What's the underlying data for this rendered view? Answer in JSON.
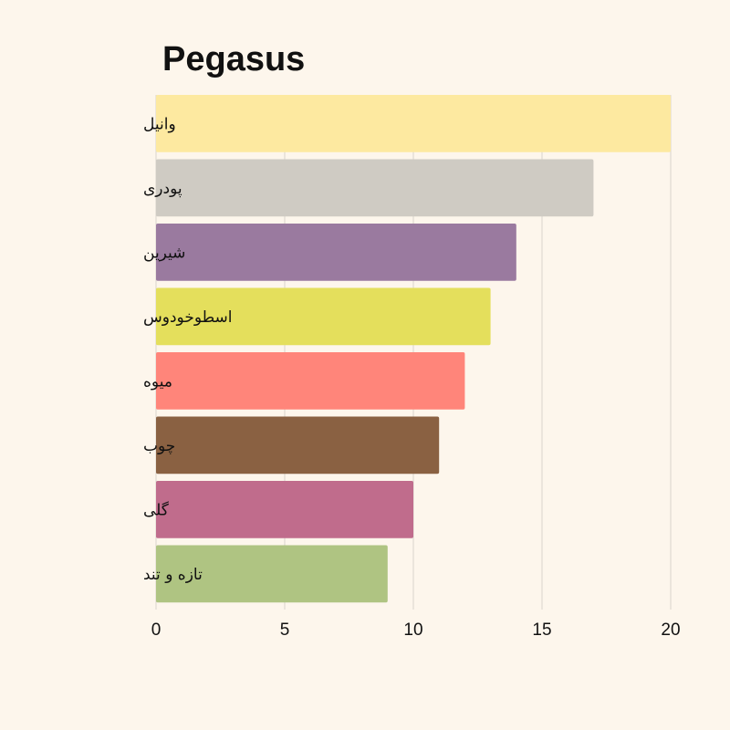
{
  "chart_data": {
    "type": "bar",
    "orientation": "horizontal",
    "title": "Pegasus",
    "xlabel": "",
    "ylabel": "",
    "xlim": [
      0,
      20
    ],
    "xticks": [
      0,
      5,
      10,
      15,
      20
    ],
    "grid": "vertical",
    "categories": [
      "وانیل",
      "پودری",
      "شیرین",
      "اسطوخودوس",
      "میوه",
      "چوب",
      "گلی",
      "تازه و تند"
    ],
    "values": [
      20,
      17,
      14,
      13,
      12,
      11,
      10,
      9
    ],
    "colors": [
      "#fde9a0",
      "#cfcbc3",
      "#9a7a9f",
      "#e4df5c",
      "#ff857a",
      "#8a6142",
      "#c06c8c",
      "#afc482"
    ]
  }
}
